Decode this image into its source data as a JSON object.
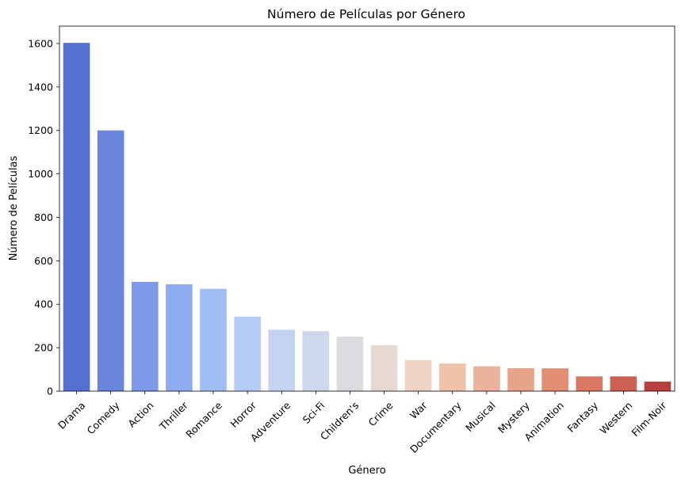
{
  "chart_data": {
    "type": "bar",
    "title": "Número de Películas por Género",
    "xlabel": "Género",
    "ylabel": "Número de Películas",
    "categories": [
      "Drama",
      "Comedy",
      "Action",
      "Thriller",
      "Romance",
      "Horror",
      "Adventure",
      "Sci-Fi",
      "Children's",
      "Crime",
      "War",
      "Documentary",
      "Musical",
      "Mystery",
      "Animation",
      "Fantasy",
      "Western",
      "Film-Noir"
    ],
    "values": [
      1603,
      1200,
      503,
      492,
      471,
      343,
      283,
      276,
      251,
      211,
      143,
      127,
      114,
      106,
      105,
      68,
      68,
      44
    ],
    "colors": [
      "#5470d0",
      "#6a86dc",
      "#7c9ae8",
      "#8eacf0",
      "#a0bef6",
      "#b3cbf6",
      "#c4d4f0",
      "#ccd8ec",
      "#dadcdf",
      "#e5d9d1",
      "#ecd3c3",
      "#eec3aa",
      "#ecb29b",
      "#e8a48a",
      "#e38e73",
      "#d97763",
      "#cc6152",
      "#b6403d"
    ],
    "yticks": [
      0,
      200,
      400,
      600,
      800,
      1000,
      1200,
      1400,
      1600
    ],
    "ylim": [
      0,
      1680
    ],
    "grid": false,
    "legend": "none"
  }
}
